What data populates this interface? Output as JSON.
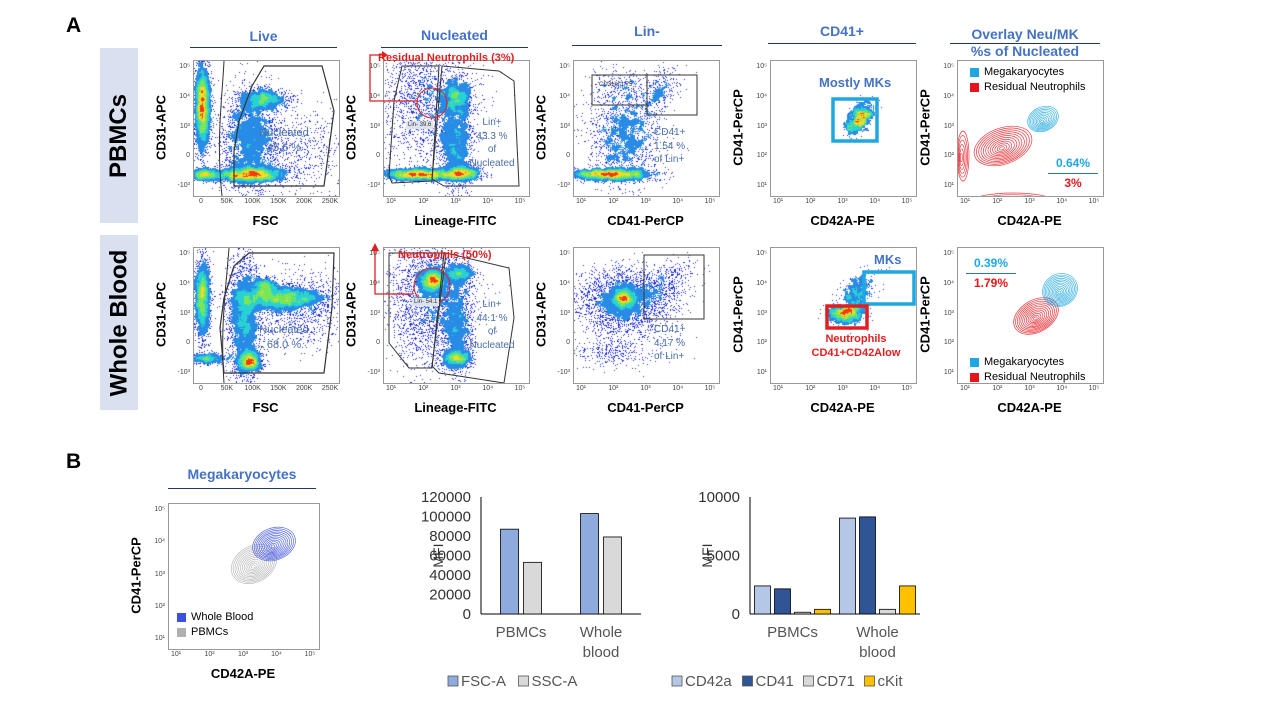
{
  "panel_a": {
    "letter": "A",
    "row_labels": [
      "PBMCs",
      "Whole Blood"
    ],
    "columns": [
      {
        "title": "Live"
      },
      {
        "title": "Nucleated"
      },
      {
        "title": "Lin-"
      },
      {
        "title": "CD41+"
      },
      {
        "title": "Overlay Neu/MK\n%s of Nucleated",
        "title_line1": "Overlay Neu/MK",
        "title_line2": "%s of Nucleated"
      }
    ],
    "axes": {
      "fsc_x": "FSC",
      "cd31_y": "CD31-APC",
      "lineage_x": "Lineage-FITC",
      "cd41_x": "CD41-PerCP",
      "cd41_y": "CD41-PerCP",
      "cd42a_x": "CD42A-PE"
    },
    "ticks": {
      "fsc": [
        "0",
        "50K",
        "100K",
        "150K",
        "200K",
        "250K"
      ],
      "log_biex_y": [
        "10⁵",
        "10⁴",
        "10³",
        "0",
        "-10³"
      ],
      "log_x": [
        "10¹",
        "10²",
        "10³",
        "10⁴",
        "10⁵"
      ],
      "log_y": [
        "10⁵",
        "10⁴",
        "10³",
        "10²",
        "10¹"
      ]
    },
    "pbmc": {
      "live_gate": "Nucleated\n45.6 %",
      "live_gate_l1": "Nucleated",
      "live_gate_l2": "45.6 %",
      "nucleated_annotation": "Residual Neutrophils (3%)",
      "nucleated_lin_minus": "Lin-\n39.6",
      "lin_minus_l1": "Lin-",
      "lin_minus_l2": "39.6",
      "lin_plus_l1": "Lin+",
      "lin_plus_l2": "43.3 %",
      "lin_plus_l3": "of",
      "lin_plus_l4": "Nucleated",
      "cd31hi_l1": "CD31hi",
      "cd31hi_l2": "1.75",
      "cd41_l1": "CD41+",
      "cd41_l2": "1.54 %",
      "cd41_l3": "of Lin+",
      "cd41_plot_label": "Mostly MKs",
      "overlay_mk_pct": "0.64%",
      "overlay_neu_pct": "3%",
      "legend": [
        {
          "label": "Megakaryocytes",
          "color": "#1ea7e1"
        },
        {
          "label": "Residual Neutrophils",
          "color": "#e8141b"
        }
      ]
    },
    "whole_blood": {
      "live_gate_l1": "Nucleated",
      "live_gate_l2": "68.0 %",
      "nucleated_annotation": "Neutrophils (50%)",
      "lin_minus_l1": "Lin-",
      "lin_minus_l2": "54.1",
      "lin_plus_l1": "Lin+",
      "lin_plus_l2": "44.1 %",
      "lin_plus_l3": "of",
      "lin_plus_l4": "Nucleated",
      "cd41_l1": "CD41+",
      "cd41_l2": "4.17 %",
      "cd41_l3": "of Lin+",
      "mk_label": "MKs",
      "neu_label_l1": "Neutrophils",
      "neu_label_l2": "CD41+CD42Alow",
      "overlay_mk_pct": "0.39%",
      "overlay_neu_pct": "1.79%",
      "legend": [
        {
          "label": "Megakaryocytes",
          "color": "#1ea7e1"
        },
        {
          "label": "Residual Neutrophils",
          "color": "#e8141b"
        }
      ]
    }
  },
  "panel_b": {
    "letter": "B",
    "mk_title": "Megakaryocytes",
    "mk_y": "CD41-PerCP",
    "mk_x": "CD42A-PE",
    "mk_legend": [
      {
        "label": "Whole Blood",
        "color": "#3b4fe0"
      },
      {
        "label": "PBMCs",
        "color": "#b0b0b0"
      }
    ]
  },
  "chart_data": [
    {
      "type": "bar",
      "title": "",
      "ylabel": "MFI",
      "xlabel": "",
      "categories": [
        "PBMCs",
        "Whole\nblood"
      ],
      "category_lines": [
        [
          "PBMCs"
        ],
        [
          "Whole",
          "blood"
        ]
      ],
      "ylim": [
        0,
        120000
      ],
      "yticks": [
        "120000",
        "100000",
        "80000",
        "60000",
        "40000",
        "20000",
        "0"
      ],
      "ytick_values": [
        120000,
        100000,
        80000,
        60000,
        40000,
        20000,
        0
      ],
      "series": [
        {
          "name": "FSC-A",
          "color": "#8faadc",
          "values": [
            87000,
            103000
          ]
        },
        {
          "name": "SSC-A",
          "color": "#d9d9d9",
          "values": [
            53000,
            79000
          ]
        }
      ],
      "legend": "bottom",
      "grid": false
    },
    {
      "type": "bar",
      "title": "",
      "ylabel": "MFI",
      "xlabel": "",
      "categories": [
        "PBMCs",
        "Whole\nblood"
      ],
      "category_lines": [
        [
          "PBMCs"
        ],
        [
          "Whole",
          "blood"
        ]
      ],
      "ylim": [
        0,
        10000
      ],
      "yticks": [
        "10000",
        "5000",
        "0"
      ],
      "ytick_values": [
        10000,
        5000,
        0
      ],
      "series": [
        {
          "name": "CD42a",
          "color": "#b4c7e7",
          "values": [
            2400,
            8200
          ]
        },
        {
          "name": "CD41",
          "color": "#2f5597",
          "values": [
            2150,
            8300
          ]
        },
        {
          "name": "CD71",
          "color": "#d9d9d9",
          "values": [
            150,
            400
          ]
        },
        {
          "name": "cKit",
          "color": "#ffc000",
          "values": [
            400,
            2400
          ]
        }
      ],
      "legend": "bottom",
      "grid": false
    }
  ]
}
